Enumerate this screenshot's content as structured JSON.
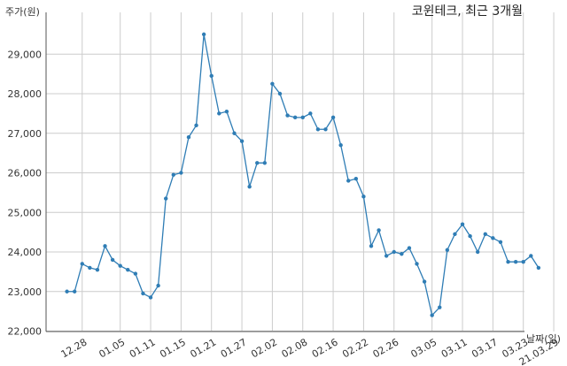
{
  "chart_data": {
    "type": "line",
    "title": "코윈테크, 최근 3개월",
    "xlabel": "날짜(일)",
    "ylabel": "주가(원)",
    "ylim": [
      22000,
      29600
    ],
    "yticks": [
      22000,
      23000,
      24000,
      25000,
      26000,
      27000,
      28000,
      29000
    ],
    "ytick_labels": [
      "22,000",
      "23,000",
      "24,000",
      "25,000",
      "26,000",
      "27,000",
      "28,000",
      "29,000"
    ],
    "xticks": [
      {
        "label": "12.28",
        "index": 2
      },
      {
        "label": "01.05",
        "index": 7
      },
      {
        "label": "01.11",
        "index": 11
      },
      {
        "label": "01.15",
        "index": 15
      },
      {
        "label": "01.21",
        "index": 19
      },
      {
        "label": "01.27",
        "index": 23
      },
      {
        "label": "02.02",
        "index": 27
      },
      {
        "label": "02.08",
        "index": 31
      },
      {
        "label": "02.16",
        "index": 35
      },
      {
        "label": "02.22",
        "index": 39
      },
      {
        "label": "02.26",
        "index": 43
      },
      {
        "label": "03.05",
        "index": 48
      },
      {
        "label": "03.11",
        "index": 52
      },
      {
        "label": "03.17",
        "index": 56
      },
      {
        "label": "03.23",
        "index": 60
      },
      {
        "label": "21.03.29",
        "index": 64
      }
    ],
    "grid": true,
    "line_color": "#2f7db5",
    "series": [
      {
        "values": [
          23000,
          23000,
          23700,
          23600,
          23550,
          24150,
          23800,
          23650,
          23550,
          23450,
          22950,
          22850,
          23150,
          25350,
          25950,
          26000,
          26900,
          27200,
          29500,
          28450,
          27500,
          27550,
          27000,
          26800,
          25650,
          26250,
          26250,
          28250,
          28000,
          27450,
          27400,
          27400,
          27500,
          27100,
          27100,
          27400,
          26700,
          25800,
          25850,
          25400,
          24150,
          24550,
          23900,
          24000,
          23950,
          24100,
          23700,
          23250,
          22400,
          22600,
          24050,
          24450,
          24700,
          24400,
          24000,
          24450,
          24350,
          24250,
          23750,
          23750,
          23750,
          23900,
          23600
        ]
      }
    ]
  }
}
